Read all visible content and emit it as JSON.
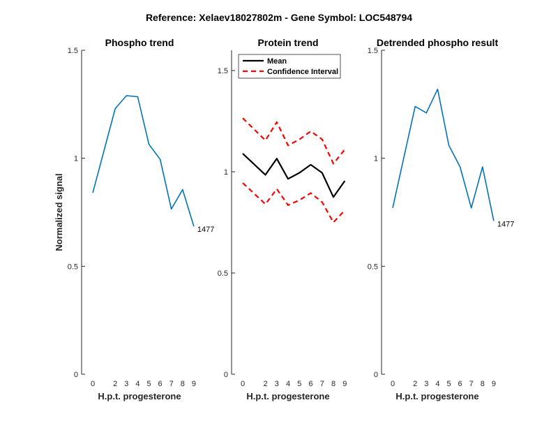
{
  "figure_title": "Reference:  Xelaev18027802m - Gene Symbol:  LOC548794",
  "colors": {
    "blue": "#0072BD",
    "black": "#000000",
    "red": "#FF0000",
    "axis": "#262626"
  },
  "chart_data": [
    {
      "type": "line",
      "title": "Phospho trend",
      "xlabel": "H.p.t. progesterone",
      "ylabel": "Normalized signal",
      "ylim": [
        0,
        1.5
      ],
      "yticks": [
        0,
        0.5,
        1,
        1.5
      ],
      "ytick_labels": [
        "0",
        "0.5",
        "1",
        "1.5"
      ],
      "xticks": [
        0,
        2,
        3,
        4,
        5,
        6,
        7,
        8,
        9
      ],
      "series": [
        {
          "name": "phospho",
          "color": "#0072BD",
          "x": [
            0,
            2,
            3,
            4,
            5,
            6,
            7,
            8,
            9
          ],
          "values": [
            0.84,
            1.23,
            1.29,
            1.285,
            1.065,
            0.995,
            0.765,
            0.855,
            0.685
          ]
        }
      ],
      "annotation": "1477"
    },
    {
      "type": "line",
      "title": "Protein trend",
      "xlabel": "H.p.t. progesterone",
      "ylabel": "",
      "ylim": [
        0,
        1.6
      ],
      "yticks": [
        0,
        0.5,
        1,
        1.5
      ],
      "ytick_labels": [
        "0",
        "0.5",
        "1",
        "1.5"
      ],
      "xticks": [
        0,
        2,
        3,
        4,
        5,
        6,
        7,
        8,
        9
      ],
      "legend": [
        "Mean",
        "Confidence Interval"
      ],
      "legend_position": "top-left",
      "series": [
        {
          "name": "Mean",
          "color": "#000000",
          "x": [
            0,
            2,
            3,
            4,
            5,
            6,
            7,
            8,
            9
          ],
          "values": [
            1.09,
            0.985,
            1.065,
            0.965,
            0.995,
            1.035,
            0.995,
            0.875,
            0.955
          ]
        },
        {
          "name": "Confidence Interval (upper)",
          "color": "#FF0000",
          "x": [
            0,
            2,
            3,
            4,
            5,
            6,
            7,
            8,
            9
          ],
          "values": [
            1.265,
            1.155,
            1.245,
            1.13,
            1.16,
            1.2,
            1.16,
            1.04,
            1.11
          ]
        },
        {
          "name": "Confidence Interval (lower)",
          "color": "#FF0000",
          "x": [
            0,
            2,
            3,
            4,
            5,
            6,
            7,
            8,
            9
          ],
          "values": [
            0.945,
            0.84,
            0.915,
            0.835,
            0.86,
            0.895,
            0.85,
            0.75,
            0.81
          ]
        }
      ]
    },
    {
      "type": "line",
      "title": "Detrended phospho result",
      "xlabel": "H.p.t. progesterone",
      "ylabel": "",
      "ylim": [
        0,
        1.5
      ],
      "yticks": [
        0,
        0.5,
        1,
        1.5
      ],
      "ytick_labels": [
        "0",
        "0.5",
        "1",
        "1.5"
      ],
      "xticks": [
        0,
        2,
        3,
        4,
        5,
        6,
        7,
        8,
        9
      ],
      "series": [
        {
          "name": "detrended",
          "color": "#0072BD",
          "x": [
            0,
            2,
            3,
            4,
            5,
            6,
            7,
            8,
            9
          ],
          "values": [
            0.77,
            1.24,
            1.21,
            1.32,
            1.06,
            0.96,
            0.77,
            0.96,
            0.71
          ]
        }
      ],
      "annotation": "1477"
    }
  ]
}
